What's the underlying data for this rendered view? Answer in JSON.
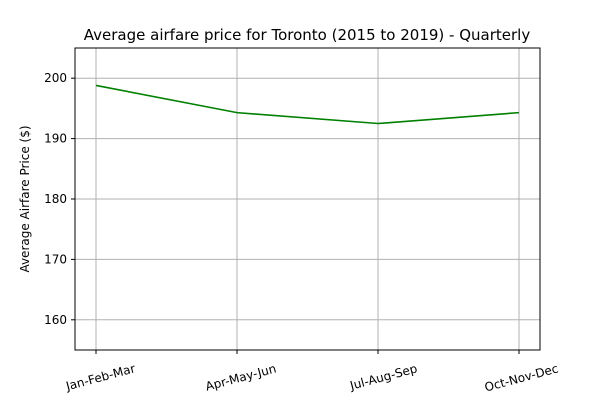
{
  "chart_data": {
    "type": "line",
    "title": "Average airfare price for Toronto (2015 to 2019) - Quarterly",
    "xlabel": "",
    "ylabel": "Average Airfare Price ($)",
    "categories": [
      "Jan-Feb-Mar",
      "Apr-May-Jun",
      "Jul-Aug-Sep",
      "Oct-Nov-Dec"
    ],
    "series": [
      {
        "values": [
          198.8,
          194.3,
          192.5,
          194.3
        ],
        "color": "#008000"
      }
    ],
    "ylim": [
      155,
      205
    ],
    "yticks": [
      160,
      170,
      180,
      190,
      200
    ],
    "grid": true,
    "legend": "none",
    "xtick_rotation_deg": -15
  }
}
